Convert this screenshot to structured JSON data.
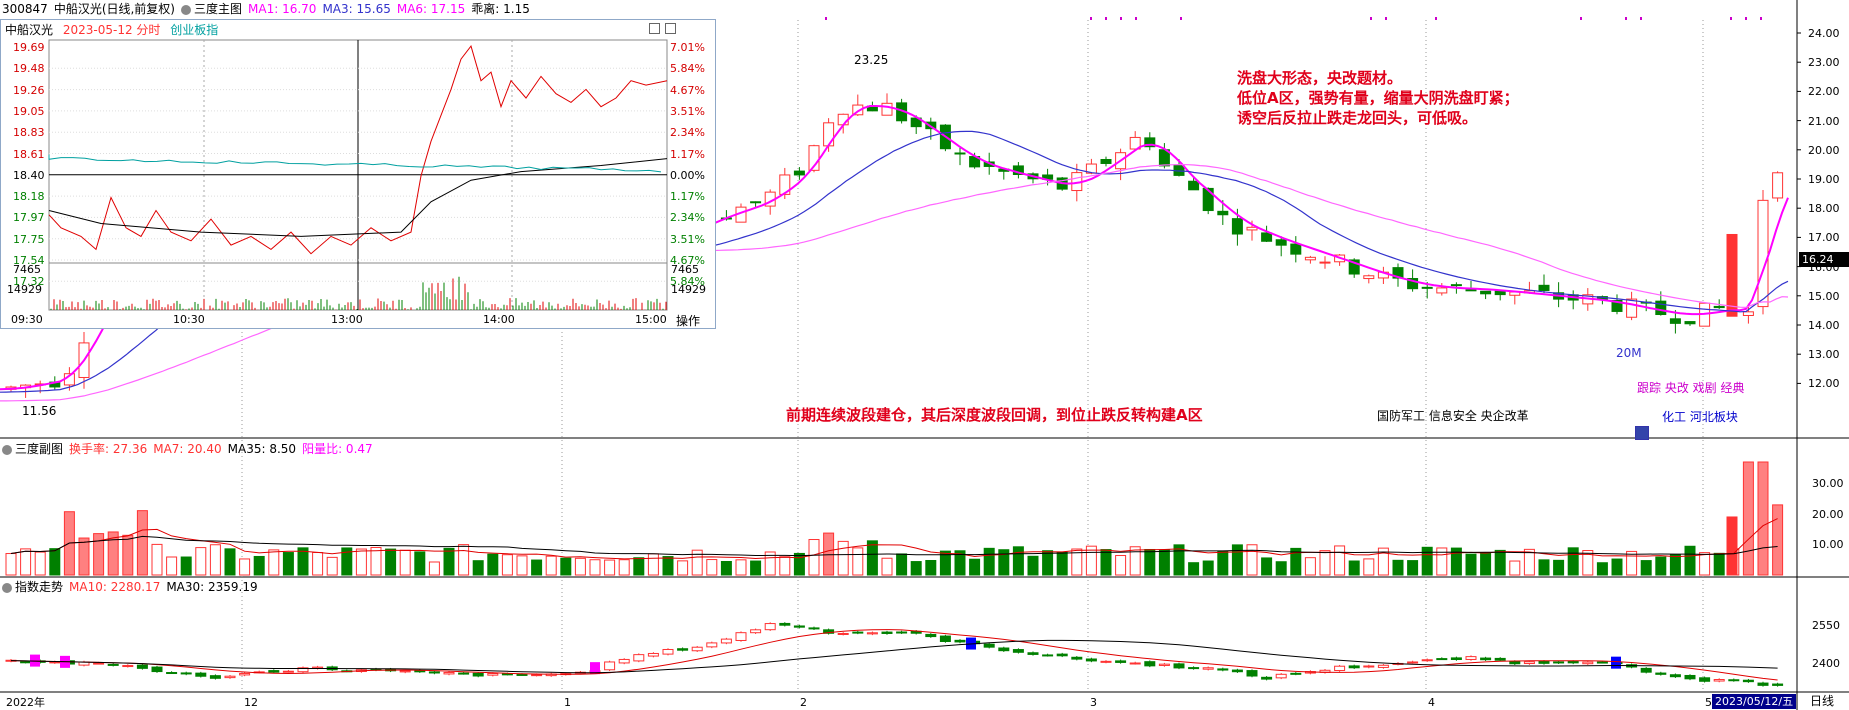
{
  "main_header": {
    "code": "300847",
    "name": "中船汉光(日线,前复权)",
    "chart_name": "三度主图",
    "ma1": "MA1: 16.70",
    "ma3": "MA3: 15.65",
    "ma6": "MA6: 17.15",
    "deviation": "乖离: 1.15"
  },
  "price_axis": [
    "24.00",
    "23.00",
    "22.00",
    "21.00",
    "20.00",
    "19.00",
    "18.00",
    "17.00",
    "16.00",
    "15.00",
    "14.00",
    "13.00",
    "12.00"
  ],
  "current_price_tag": "16.24",
  "high_marker": "23.25",
  "low_marker": "11.56",
  "label_20m": "20M",
  "annotations": {
    "right_block": [
      "洗盘大形态，央改题材。",
      "低位A区，强势有量，缩量大阴洗盘盯紧；",
      "诱空后反拉止跌走龙回头，可低吸。"
    ],
    "bottom_line": "前期连续波段建仓，其后深度波段回调，到位止跌反转构建A区"
  },
  "concept_tags": {
    "row1": "国防军工 信息安全 央企改革",
    "row2": "跟踪 央改 戏剧 经典",
    "row3": "化工  河北板块"
  },
  "sub1_header": {
    "name": "三度副图",
    "turnover": "换手率: 27.36",
    "ma7": "MA7: 20.40",
    "ma35": "MA35: 8.50",
    "yang_ratio": "阳量比: 0.47"
  },
  "sub1_axis": [
    "30.00",
    "20.00",
    "10.00"
  ],
  "sub2_header": {
    "name": "指数走势",
    "ma10": "MA10: 2280.17",
    "ma30": "MA30: 2359.19"
  },
  "sub2_axis": [
    "2550",
    "2400"
  ],
  "x_axis": {
    "labels": [
      "2022年",
      "12",
      "1",
      "2",
      "3",
      "4",
      "5"
    ],
    "date_box": "2023/05/12/五",
    "period": "日线"
  },
  "popup": {
    "title": "中船汉光",
    "date": "2023-05-12 分时",
    "board": "创业板指",
    "left_prices": [
      "19.69",
      "19.48",
      "19.26",
      "19.05",
      "18.83",
      "18.61",
      "18.40",
      "18.18",
      "17.97",
      "17.75",
      "17.54",
      "17.32"
    ],
    "right_pcts": [
      "7.01%",
      "5.84%",
      "4.67%",
      "3.51%",
      "2.34%",
      "1.17%",
      "0.00%",
      "1.17%",
      "2.34%",
      "3.51%",
      "4.67%",
      "5.84%"
    ],
    "vol_top": "14929",
    "vol_mid": "7465",
    "times": [
      "09:30",
      "10:30",
      "13:00",
      "14:00",
      "15:00"
    ],
    "action": "操作"
  },
  "colors": {
    "up": "#ff3333",
    "down": "#008000",
    "ma_magenta": "#ff00ff",
    "ma_blue": "#3333cc",
    "ma_pink": "#ff66ff",
    "annotation_red": "#e0001b"
  }
}
